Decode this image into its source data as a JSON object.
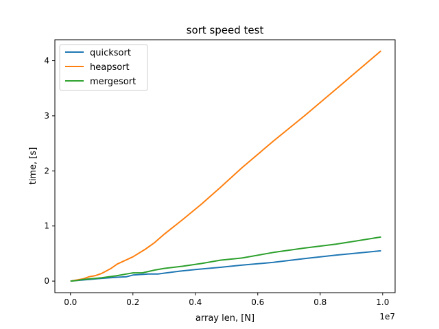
{
  "chart_data": {
    "type": "line",
    "title": "sort speed test",
    "xlabel": "array len, [N]",
    "ylabel": "time, [s]",
    "x_offset_text": "1e7",
    "xlim": [
      -0.05,
      1.04
    ],
    "ylim": [
      -0.21,
      4.38
    ],
    "x_ticks": [
      0.0,
      0.2,
      0.4,
      0.6,
      0.8,
      1.0
    ],
    "x_tick_labels": [
      "0.0",
      "0.2",
      "0.4",
      "0.6",
      "0.8",
      "1.0"
    ],
    "y_ticks": [
      0,
      1,
      2,
      3,
      4
    ],
    "y_tick_labels": [
      "0",
      "1",
      "2",
      "3",
      "4"
    ],
    "grid": false,
    "legend_position": "upper-left",
    "series": [
      {
        "name": "quicksort",
        "color": "#1f77b4",
        "x": [
          0.0,
          0.02,
          0.04,
          0.06,
          0.08,
          0.1,
          0.15,
          0.18,
          0.2,
          0.25,
          0.28,
          0.35,
          0.4,
          0.48,
          0.55,
          0.65,
          0.75,
          0.85,
          0.995
        ],
        "y": [
          0.0,
          0.01,
          0.02,
          0.03,
          0.04,
          0.05,
          0.07,
          0.08,
          0.11,
          0.13,
          0.13,
          0.18,
          0.21,
          0.25,
          0.29,
          0.34,
          0.41,
          0.47,
          0.55
        ]
      },
      {
        "name": "heapsort",
        "color": "#ff7f0e",
        "x": [
          0.0,
          0.02,
          0.04,
          0.06,
          0.08,
          0.1,
          0.13,
          0.15,
          0.2,
          0.24,
          0.27,
          0.3,
          0.36,
          0.42,
          0.48,
          0.55,
          0.65,
          0.75,
          0.85,
          0.995
        ],
        "y": [
          0.0,
          0.02,
          0.04,
          0.08,
          0.1,
          0.14,
          0.23,
          0.31,
          0.44,
          0.58,
          0.7,
          0.85,
          1.12,
          1.4,
          1.7,
          2.06,
          2.54,
          3.0,
          3.48,
          4.18
        ]
      },
      {
        "name": "mergesort",
        "color": "#2ca02c",
        "x": [
          0.0,
          0.02,
          0.04,
          0.06,
          0.08,
          0.1,
          0.15,
          0.18,
          0.2,
          0.23,
          0.27,
          0.3,
          0.36,
          0.42,
          0.48,
          0.55,
          0.65,
          0.75,
          0.85,
          0.995
        ],
        "y": [
          0.0,
          0.01,
          0.03,
          0.04,
          0.05,
          0.06,
          0.1,
          0.13,
          0.15,
          0.15,
          0.2,
          0.23,
          0.27,
          0.32,
          0.38,
          0.42,
          0.52,
          0.6,
          0.67,
          0.8
        ]
      }
    ]
  }
}
